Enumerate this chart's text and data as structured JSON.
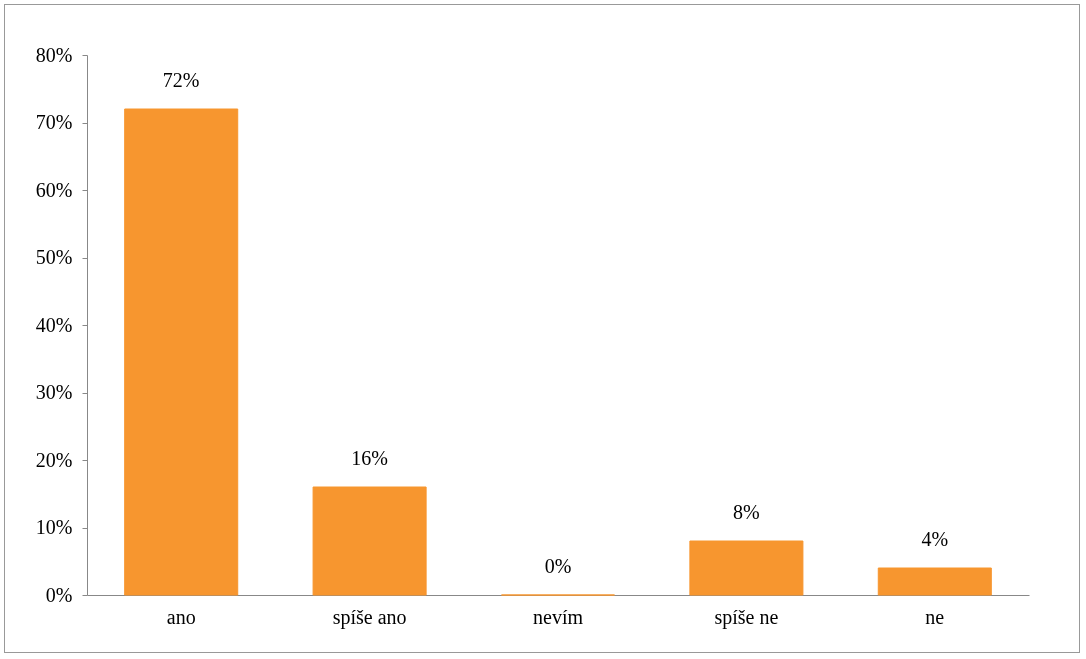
{
  "chart_data": {
    "type": "bar",
    "categories": [
      "ano",
      "spíše ano",
      "nevím",
      "spíše ne",
      "ne"
    ],
    "values": [
      72,
      16,
      0,
      8,
      4
    ],
    "value_labels": [
      "72%",
      "16%",
      "0%",
      "8%",
      "4%"
    ],
    "color": "#f7962f",
    "ylim": [
      0,
      80
    ],
    "yticks": [
      {
        "value": 0,
        "label": "0%"
      },
      {
        "value": 10,
        "label": "10%"
      },
      {
        "value": 20,
        "label": "20%"
      },
      {
        "value": 30,
        "label": "30%"
      },
      {
        "value": 40,
        "label": "40%"
      },
      {
        "value": 50,
        "label": "50%"
      },
      {
        "value": 60,
        "label": "60%"
      },
      {
        "value": 70,
        "label": "70%"
      },
      {
        "value": 80,
        "label": "80%"
      }
    ],
    "grid": false
  }
}
